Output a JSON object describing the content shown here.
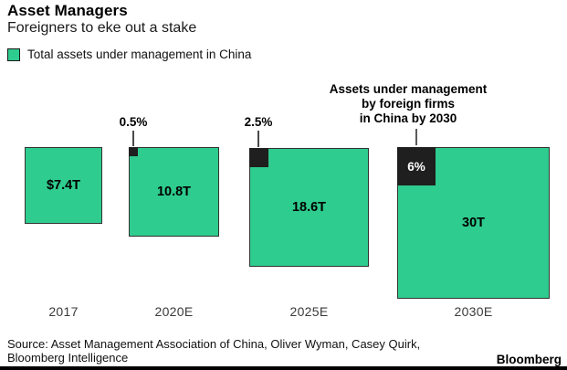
{
  "header": {
    "title": "Asset Managers",
    "subtitle": "Foreigners to eke out a stake"
  },
  "legend": {
    "label": "Total assets under management in China",
    "swatch_color": "#2ecc8e"
  },
  "annotation": {
    "lines": [
      "Assets under management",
      "by foreign firms",
      "in China by 2030"
    ]
  },
  "squares": [
    {
      "category": "2017",
      "value_label": "$7.4T",
      "share_label": null
    },
    {
      "category": "2020E",
      "value_label": "10.8T",
      "share_label": "0.5%"
    },
    {
      "category": "2025E",
      "value_label": "18.6T",
      "share_label": "2.5%"
    },
    {
      "category": "2030E",
      "value_label": "30T",
      "share_label": "6%"
    }
  ],
  "chart_data": {
    "type": "area",
    "variant": "proportional-squares",
    "title": "Asset Managers",
    "subtitle": "Foreigners to eke out a stake",
    "unit": "USD trillions",
    "categories": [
      "2017",
      "2020E",
      "2025E",
      "2030E"
    ],
    "series": [
      {
        "name": "Total assets under management in China ($T)",
        "values": [
          7.4,
          10.8,
          18.6,
          30
        ]
      },
      {
        "name": "Share held by foreign firms (%)",
        "values": [
          null,
          0.5,
          2.5,
          6
        ]
      }
    ],
    "value_labels": [
      "$7.4T",
      "10.8T",
      "18.6T",
      "30T"
    ],
    "share_labels": [
      null,
      "0.5%",
      "2.5%",
      "6%"
    ],
    "annotation": "Assets under management by foreign firms in China by 2030",
    "legend_position": "top-left",
    "grid": false,
    "colors": {
      "total": "#2ecc8e",
      "foreign": "#1f1f1f"
    }
  },
  "footer": {
    "source_line1": "Source: Asset Management Association of China, Oliver Wyman, Casey Quirk,",
    "source_line2": "Bloomberg Intelligence",
    "brand": "Bloomberg"
  }
}
